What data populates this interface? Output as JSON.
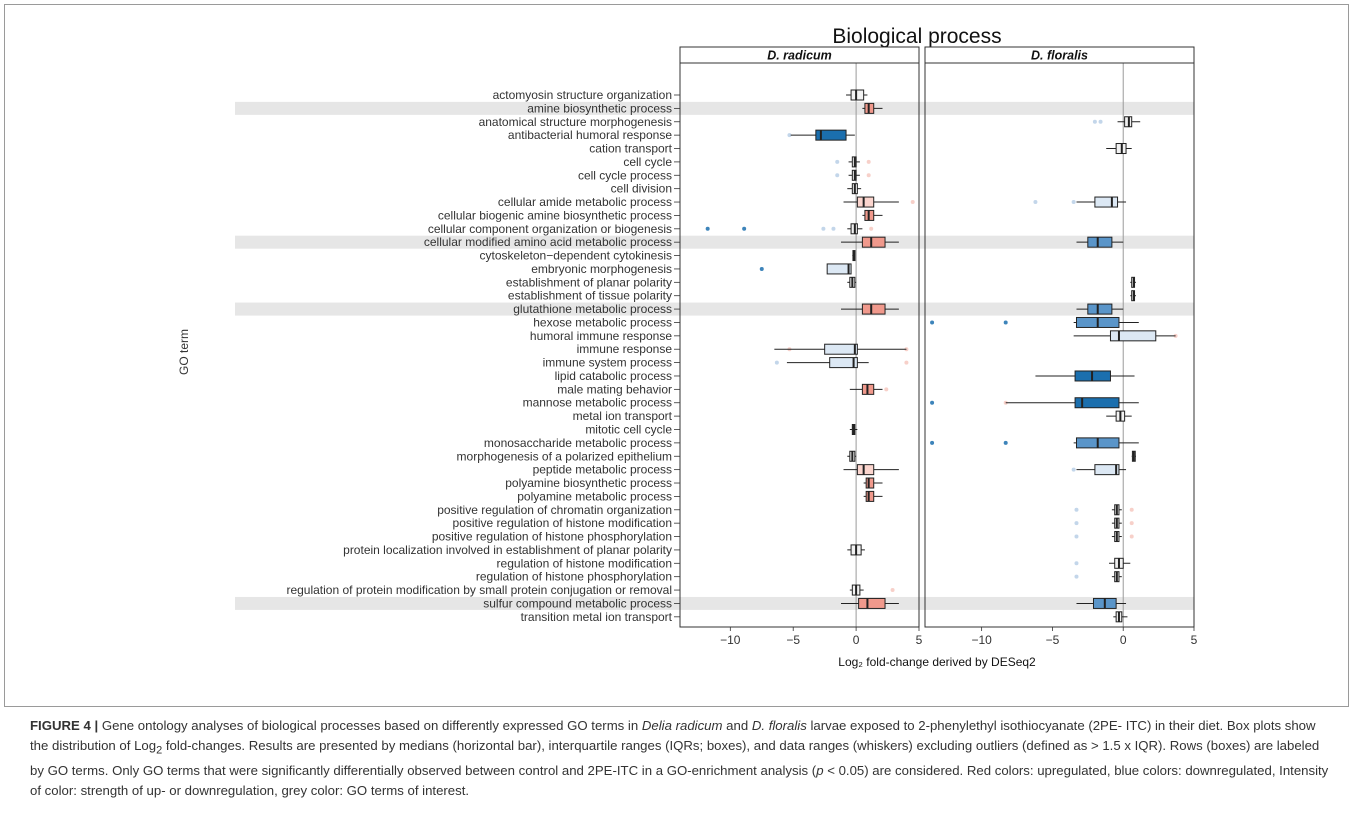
{
  "chart_data": {
    "type": "boxplot",
    "title": "Biological process",
    "xlabel": "Log₂ fold-change derived by DESeq2",
    "ylabel": "GO term",
    "xlim": [
      -14,
      5
    ],
    "x_ticks": [
      -10,
      -5,
      0,
      5
    ],
    "x_tick_labels": [
      "−10",
      "−5",
      "0",
      "5"
    ],
    "colors": {
      "strong_down": "#1b6fae",
      "mid_down": "#5a95c9",
      "light_down": "#dce8f4",
      "neutral": "#f2f2f2",
      "light_up": "#fbd5ce",
      "mid_up": "#f0998c",
      "highlight": "#e6e6e6",
      "median": "#222222",
      "whisker": "#222222"
    },
    "highlighted_terms": [
      "amine biosynthetic process",
      "cellular modified amino acid metabolic process",
      "glutathione metabolic process",
      "sulfur compound metabolic process"
    ],
    "terms": [
      "actomyosin structure organization",
      "amine biosynthetic process",
      "anatomical structure morphogenesis",
      "antibacterial humoral response",
      "cation transport",
      "cell cycle",
      "cell cycle process",
      "cell division",
      "cellular amide metabolic process",
      "cellular biogenic amine biosynthetic process",
      "cellular component organization or biogenesis",
      "cellular modified amino acid metabolic process",
      "cytoskeleton−dependent cytokinesis",
      "embryonic morphogenesis",
      "establishment of planar polarity",
      "establishment of tissue polarity",
      "glutathione metabolic process",
      "hexose metabolic process",
      "humoral immune response",
      "immune response",
      "immune system process",
      "lipid catabolic process",
      "male mating behavior",
      "mannose metabolic process",
      "metal ion transport",
      "mitotic cell cycle",
      "monosaccharide metabolic process",
      "morphogenesis of a polarized epithelium",
      "peptide metabolic process",
      "polyamine biosynthetic process",
      "polyamine metabolic process",
      "positive regulation of chromatin organization",
      "positive regulation of histone modification",
      "positive regulation of histone phosphorylation",
      "protein localization involved in establishment of planar polarity",
      "regulation of histone modification",
      "regulation of histone phosphorylation",
      "regulation of protein modification by small protein conjugation or removal",
      "sulfur compound metabolic process",
      "transition metal ion transport"
    ],
    "panels": [
      {
        "name": "D. radicum",
        "boxes": [
          {
            "term": "actomyosin structure organization",
            "wlo": -0.8,
            "q1": -0.4,
            "median": 0.0,
            "q3": 0.6,
            "whi": 0.9,
            "color": "neutral",
            "outliers": []
          },
          {
            "term": "amine biosynthetic process",
            "wlo": 0.5,
            "q1": 0.7,
            "median": 1.0,
            "q3": 1.4,
            "whi": 2.1,
            "color": "mid_up",
            "outliers": []
          },
          {
            "term": "antibacterial humoral response",
            "wlo": -5.2,
            "q1": -3.2,
            "median": -2.8,
            "q3": -0.8,
            "whi": -0.1,
            "color": "strong_down",
            "outliers": [
              -5.3
            ]
          },
          {
            "term": "cell cycle",
            "wlo": -0.6,
            "q1": -0.3,
            "median": -0.1,
            "q3": 0.0,
            "whi": 0.3,
            "color": "neutral",
            "outliers": [
              -1.5,
              1.0
            ]
          },
          {
            "term": "cell cycle process",
            "wlo": -0.6,
            "q1": -0.3,
            "median": -0.1,
            "q3": 0.0,
            "whi": 0.3,
            "color": "neutral",
            "outliers": [
              -1.5,
              1.0
            ]
          },
          {
            "term": "cell division",
            "wlo": -0.7,
            "q1": -0.3,
            "median": -0.1,
            "q3": 0.1,
            "whi": 0.4,
            "color": "neutral",
            "outliers": []
          },
          {
            "term": "cellular amide metabolic process",
            "wlo": -1.0,
            "q1": 0.1,
            "median": 0.6,
            "q3": 1.4,
            "whi": 3.4,
            "color": "light_up",
            "outliers": [
              4.5
            ]
          },
          {
            "term": "cellular biogenic amine biosynthetic process",
            "wlo": 0.5,
            "q1": 0.7,
            "median": 1.0,
            "q3": 1.4,
            "whi": 2.1,
            "color": "mid_up",
            "outliers": []
          },
          {
            "term": "cellular component organization or biogenesis",
            "wlo": -0.7,
            "q1": -0.4,
            "median": -0.1,
            "q3": 0.1,
            "whi": 0.5,
            "color": "neutral",
            "outliers": [
              -11.8,
              -8.9,
              -2.6,
              -1.8,
              1.2
            ]
          },
          {
            "term": "cellular modified amino acid metabolic process",
            "wlo": -1.2,
            "q1": 0.5,
            "median": 1.2,
            "q3": 2.3,
            "whi": 3.4,
            "color": "mid_up",
            "outliers": []
          },
          {
            "term": "cytoskeleton−dependent cytokinesis",
            "wlo": -0.3,
            "q1": -0.25,
            "median": -0.2,
            "q3": -0.15,
            "whi": -0.1,
            "color": "neutral",
            "outliers": []
          },
          {
            "term": "embryonic morphogenesis",
            "wlo": -2.3,
            "q1": -2.3,
            "median": -0.6,
            "q3": -0.4,
            "whi": -0.4,
            "color": "light_down",
            "outliers": [
              -7.5
            ]
          },
          {
            "term": "establishment of planar polarity",
            "wlo": -0.7,
            "q1": -0.5,
            "median": -0.3,
            "q3": -0.1,
            "whi": 0.0,
            "color": "neutral",
            "outliers": []
          },
          {
            "term": "glutathione metabolic process",
            "wlo": -1.2,
            "q1": 0.5,
            "median": 1.2,
            "q3": 2.3,
            "whi": 3.4,
            "color": "mid_up",
            "outliers": []
          },
          {
            "term": "immune response",
            "wlo": -6.5,
            "q1": -2.5,
            "median": -0.1,
            "q3": 0.1,
            "whi": 4.0,
            "color": "light_down",
            "outliers": [
              -5.3,
              4.0
            ]
          },
          {
            "term": "immune system process",
            "wlo": -5.5,
            "q1": -2.1,
            "median": -0.2,
            "q3": 0.1,
            "whi": 1.0,
            "color": "light_down",
            "outliers": [
              -6.3,
              4.0
            ]
          },
          {
            "term": "male mating behavior",
            "wlo": -0.5,
            "q1": 0.5,
            "median": 0.9,
            "q3": 1.4,
            "whi": 2.1,
            "color": "mid_up",
            "outliers": [
              2.4
            ]
          },
          {
            "term": "mitotic cell cycle",
            "wlo": -0.5,
            "q1": -0.3,
            "median": -0.2,
            "q3": -0.1,
            "whi": 0.1,
            "color": "neutral",
            "outliers": []
          },
          {
            "term": "morphogenesis of a polarized epithelium",
            "wlo": -0.7,
            "q1": -0.5,
            "median": -0.3,
            "q3": -0.1,
            "whi": 0.0,
            "color": "neutral",
            "outliers": []
          },
          {
            "term": "peptide metabolic process",
            "wlo": -1.0,
            "q1": 0.1,
            "median": 0.6,
            "q3": 1.4,
            "whi": 3.4,
            "color": "light_up",
            "outliers": []
          },
          {
            "term": "polyamine biosynthetic process",
            "wlo": 0.6,
            "q1": 0.8,
            "median": 1.0,
            "q3": 1.4,
            "whi": 2.1,
            "color": "mid_up",
            "outliers": []
          },
          {
            "term": "polyamine metabolic process",
            "wlo": 0.6,
            "q1": 0.8,
            "median": 1.0,
            "q3": 1.4,
            "whi": 2.1,
            "color": "mid_up",
            "outliers": []
          },
          {
            "term": "protein localization involved in establishment of planar polarity",
            "wlo": -0.7,
            "q1": -0.4,
            "median": 0.0,
            "q3": 0.4,
            "whi": 0.7,
            "color": "neutral",
            "outliers": []
          },
          {
            "term": "regulation of protein modification by small protein conjugation or removal",
            "wlo": -0.5,
            "q1": -0.3,
            "median": 0.0,
            "q3": 0.3,
            "whi": 0.6,
            "color": "neutral",
            "outliers": [
              2.9
            ]
          },
          {
            "term": "sulfur compound metabolic process",
            "wlo": -1.2,
            "q1": 0.2,
            "median": 0.9,
            "q3": 2.3,
            "whi": 3.4,
            "color": "mid_up",
            "outliers": []
          }
        ]
      },
      {
        "name": "D. floralis",
        "boxes": [
          {
            "term": "anatomical structure morphogenesis",
            "wlo": -0.4,
            "q1": 0.1,
            "median": 0.4,
            "q3": 0.6,
            "whi": 1.2,
            "color": "neutral",
            "outliers": [
              -2.0,
              -1.6
            ]
          },
          {
            "term": "cation transport",
            "wlo": -1.2,
            "q1": -0.5,
            "median": -0.1,
            "q3": 0.2,
            "whi": 0.6,
            "color": "neutral",
            "outliers": []
          },
          {
            "term": "cellular amide metabolic process",
            "wlo": -3.3,
            "q1": -2.0,
            "median": -0.8,
            "q3": -0.4,
            "whi": 0.2,
            "color": "light_down",
            "outliers": [
              -6.2,
              -3.5
            ]
          },
          {
            "term": "cellular modified amino acid metabolic process",
            "wlo": -3.3,
            "q1": -2.5,
            "median": -1.8,
            "q3": -0.8,
            "whi": 0.0,
            "color": "mid_down",
            "outliers": []
          },
          {
            "term": "establishment of planar polarity",
            "wlo": 0.5,
            "q1": 0.6,
            "median": 0.75,
            "q3": 0.8,
            "whi": 0.9,
            "color": "neutral",
            "outliers": []
          },
          {
            "term": "establishment of tissue polarity",
            "wlo": 0.5,
            "q1": 0.6,
            "median": 0.75,
            "q3": 0.8,
            "whi": 0.9,
            "color": "neutral",
            "outliers": []
          },
          {
            "term": "glutathione metabolic process",
            "wlo": -3.3,
            "q1": -2.5,
            "median": -1.8,
            "q3": -0.8,
            "whi": 0.0,
            "color": "mid_down",
            "outliers": []
          },
          {
            "term": "hexose metabolic process",
            "wlo": -3.5,
            "q1": -3.3,
            "median": -1.8,
            "q3": -0.3,
            "whi": 1.1,
            "color": "mid_down",
            "outliers": [
              -13.5,
              -8.3
            ]
          },
          {
            "term": "humoral immune response",
            "wlo": -3.5,
            "q1": -0.9,
            "median": -0.3,
            "q3": 2.3,
            "whi": 3.7,
            "color": "light_down",
            "outliers": [
              3.7
            ]
          },
          {
            "term": "lipid catabolic process",
            "wlo": -6.2,
            "q1": -3.4,
            "median": -2.2,
            "q3": -0.9,
            "whi": 0.8,
            "color": "strong_down",
            "outliers": []
          },
          {
            "term": "mannose metabolic process",
            "wlo": -8.3,
            "q1": -3.4,
            "median": -2.9,
            "q3": -0.3,
            "whi": 1.1,
            "color": "strong_down",
            "outliers": [
              -13.5,
              -8.3
            ]
          },
          {
            "term": "metal ion transport",
            "wlo": -1.2,
            "q1": -0.5,
            "median": -0.2,
            "q3": 0.1,
            "whi": 0.6,
            "color": "neutral",
            "outliers": []
          },
          {
            "term": "monosaccharide metabolic process",
            "wlo": -3.5,
            "q1": -3.3,
            "median": -1.8,
            "q3": -0.3,
            "whi": 1.1,
            "color": "mid_down",
            "outliers": [
              -13.5,
              -8.3
            ]
          },
          {
            "term": "morphogenesis of a polarized epithelium",
            "wlo": 0.6,
            "q1": 0.65,
            "median": 0.75,
            "q3": 0.85,
            "whi": 0.9,
            "color": "neutral",
            "outliers": []
          },
          {
            "term": "peptide metabolic process",
            "wlo": -3.3,
            "q1": -2.0,
            "median": -0.5,
            "q3": -0.3,
            "whi": 0.2,
            "color": "light_down",
            "outliers": [
              -3.5
            ]
          },
          {
            "term": "positive regulation of chromatin organization",
            "wlo": -0.8,
            "q1": -0.6,
            "median": -0.45,
            "q3": -0.3,
            "whi": -0.1,
            "color": "neutral",
            "outliers": [
              -3.3,
              0.6
            ]
          },
          {
            "term": "positive regulation of histone modification",
            "wlo": -0.8,
            "q1": -0.6,
            "median": -0.45,
            "q3": -0.3,
            "whi": -0.1,
            "color": "neutral",
            "outliers": [
              -3.3,
              0.6
            ]
          },
          {
            "term": "positive regulation of histone phosphorylation",
            "wlo": -0.8,
            "q1": -0.6,
            "median": -0.45,
            "q3": -0.3,
            "whi": -0.1,
            "color": "neutral",
            "outliers": [
              -3.3,
              0.6
            ]
          },
          {
            "term": "regulation of histone modification",
            "wlo": -1.0,
            "q1": -0.6,
            "median": -0.3,
            "q3": 0.0,
            "whi": 0.5,
            "color": "neutral",
            "outliers": [
              -3.3
            ]
          },
          {
            "term": "regulation of histone phosphorylation",
            "wlo": -0.8,
            "q1": -0.6,
            "median": -0.45,
            "q3": -0.3,
            "whi": -0.1,
            "color": "neutral",
            "outliers": [
              -3.3
            ]
          },
          {
            "term": "sulfur compound metabolic process",
            "wlo": -3.3,
            "q1": -2.1,
            "median": -1.3,
            "q3": -0.5,
            "whi": 0.2,
            "color": "mid_down",
            "outliers": []
          },
          {
            "term": "transition metal ion transport",
            "wlo": -0.7,
            "q1": -0.5,
            "median": -0.3,
            "q3": -0.1,
            "whi": 0.3,
            "color": "neutral",
            "outliers": []
          }
        ]
      }
    ]
  },
  "caption": {
    "figure_label": "FIGURE 4 |",
    "text_1": " Gene ontology analyses of biological processes based on differently expressed GO terms in ",
    "species_1": "Delia radicum",
    "text_2": " and ",
    "species_2": "D. floralis",
    "text_3": " larvae exposed to 2-phenylethyl isothiocyanate (2PE- ITC) in their diet. Box plots show the distribution of Log",
    "subscript": "2",
    "text_4": " fold-changes. Results are presented by medians (horizontal bar), interquartile ranges (IQRs; boxes), and data ranges (whiskers) excluding outliers (defined as > 1.5 x IQR). Rows (boxes) are labeled by GO terms. Only GO terms that were significantly differentially observed between control and 2PE-ITC in a GO-enrichment analysis (",
    "p_symbol": "p",
    "text_5": " < 0.05) are considered. Red colors: upregulated, blue colors: downregulated, Intensity of color: strength of up- or downregulation, grey color: GO terms of interest."
  }
}
